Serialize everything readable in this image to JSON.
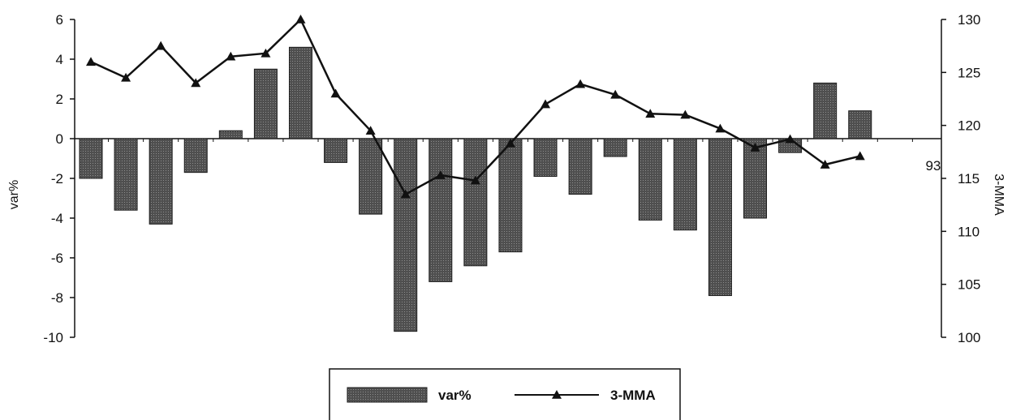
{
  "chart_data": {
    "type": "bar",
    "categories": [
      "",
      "",
      "",
      "",
      "",
      "",
      "",
      "",
      "",
      "",
      "",
      "",
      "",
      "",
      "",
      "",
      "",
      "",
      "",
      "",
      "",
      "",
      "",
      "",
      ""
    ],
    "x_tick_labels": [
      "",
      "",
      "",
      "",
      "",
      "",
      "",
      "",
      "",
      "",
      "",
      "",
      "",
      "",
      "",
      "",
      "",
      "",
      "",
      "",
      "",
      "",
      "",
      "",
      "93"
    ],
    "ylabel": "var%",
    "ylabel2": "3-MMA",
    "ylim": [
      -10,
      6
    ],
    "y_ticks": [
      6,
      4,
      2,
      0,
      -2,
      -4,
      -6,
      -8,
      -10
    ],
    "y2lim": [
      100,
      130
    ],
    "y2_ticks": [
      130,
      125,
      120,
      115,
      110,
      105,
      100
    ],
    "grid": false,
    "legend_position": "bottom",
    "series": [
      {
        "name": "var%",
        "type": "bar",
        "axis": "left",
        "values": [
          -2.0,
          -3.6,
          -4.3,
          -1.7,
          0.4,
          3.5,
          4.6,
          -1.2,
          -3.8,
          -9.7,
          -7.2,
          -6.4,
          -5.7,
          -1.9,
          -2.8,
          -0.9,
          -4.1,
          -4.6,
          -7.9,
          -4.0,
          -0.7,
          2.8,
          1.4,
          null,
          null
        ]
      },
      {
        "name": "3-MMA",
        "type": "line",
        "axis": "right",
        "marker": "triangle",
        "values": [
          126.0,
          124.5,
          127.5,
          124.0,
          126.5,
          126.8,
          130.0,
          123.0,
          119.5,
          113.5,
          115.3,
          114.8,
          118.3,
          122.0,
          123.9,
          122.9,
          121.1,
          121.0,
          119.7,
          117.9,
          118.7,
          116.3,
          117.1,
          null,
          null
        ]
      }
    ],
    "legend": [
      {
        "label": "var%",
        "kind": "bar"
      },
      {
        "label": "3-MMA",
        "kind": "line"
      }
    ],
    "colors": {
      "bar_fill": "#5a5a5a",
      "bar_stroke": "#1c1c1c",
      "line": "#111111"
    }
  }
}
